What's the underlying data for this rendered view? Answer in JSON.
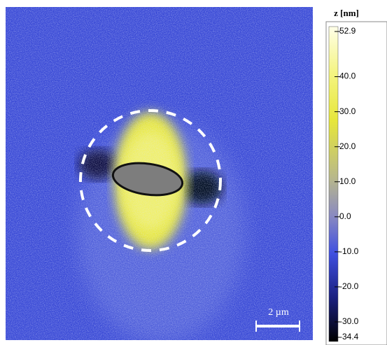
{
  "colorbar": {
    "title": "z [nm]",
    "range": [
      -34.4,
      52.9
    ],
    "ticks": [
      52.9,
      {
        "value": 40,
        "label": "40.0"
      },
      {
        "value": 30,
        "label": "30.0"
      },
      {
        "value": 20,
        "label": "20.0"
      },
      {
        "value": 10,
        "label": "10.0"
      },
      {
        "value": 0,
        "label": "0.0"
      },
      {
        "value": -10,
        "label": "-10.0"
      },
      {
        "value": -20,
        "label": "-20.0"
      },
      {
        "value": -30,
        "label": "-30.0"
      },
      -34.4
    ]
  },
  "scale_bar": {
    "label": "2 µm"
  }
}
